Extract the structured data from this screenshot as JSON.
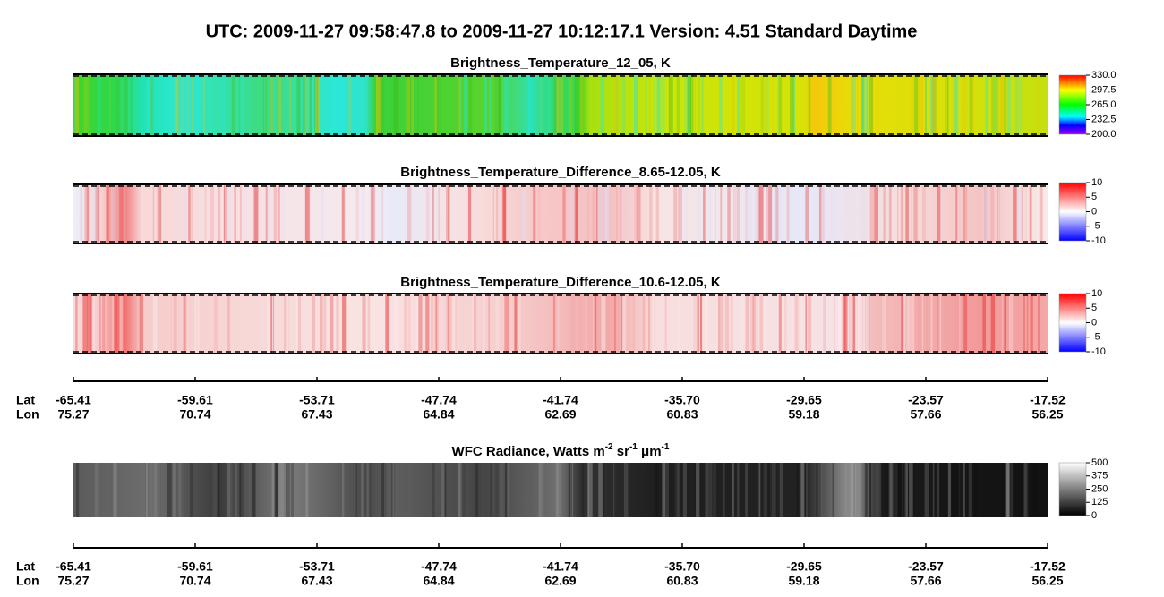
{
  "header": {
    "title": "UTC:  2009-11-27   09:58:47.8  to  2009-11-27   10:12:17.1    Version: 4.51  Standard Daytime"
  },
  "panels": [
    {
      "title": "Brightness_Temperature_12_05, K",
      "colorbar_ticks": [
        "330.0",
        "297.5",
        "265.0",
        "232.5",
        "200.0"
      ]
    },
    {
      "title": "Brightness_Temperature_Difference_8.65-12.05, K",
      "colorbar_ticks": [
        "10",
        "5",
        "0",
        "-5",
        "-10"
      ]
    },
    {
      "title": "Brightness_Temperature_Difference_10.6-12.05, K",
      "colorbar_ticks": [
        "10",
        "5",
        "0",
        "-5",
        "-10"
      ]
    },
    {
      "title_parts": [
        "WFC Radiance, Watts m",
        "-2",
        " sr",
        "-1",
        " μm",
        "-1"
      ],
      "colorbar_ticks": [
        "500",
        "375",
        "250",
        "125",
        "0"
      ]
    }
  ],
  "axes": [
    {
      "lat_label": "Lat",
      "lon_label": "Lon",
      "lat": [
        "-65.41",
        "-59.61",
        "-53.71",
        "-47.74",
        "-41.74",
        "-35.70",
        "-29.65",
        "-23.57",
        "-17.52"
      ],
      "lon": [
        "75.27",
        "70.74",
        "67.43",
        "64.84",
        "62.69",
        "60.83",
        "59.18",
        "57.66",
        "56.25"
      ]
    },
    {
      "lat_label": "Lat",
      "lon_label": "Lon",
      "lat": [
        "-65.41",
        "-59.61",
        "-53.71",
        "-47.74",
        "-41.74",
        "-35.70",
        "-29.65",
        "-23.57",
        "-17.52"
      ],
      "lon": [
        "75.27",
        "70.74",
        "67.43",
        "64.84",
        "62.69",
        "60.83",
        "59.18",
        "57.66",
        "56.25"
      ]
    }
  ]
}
